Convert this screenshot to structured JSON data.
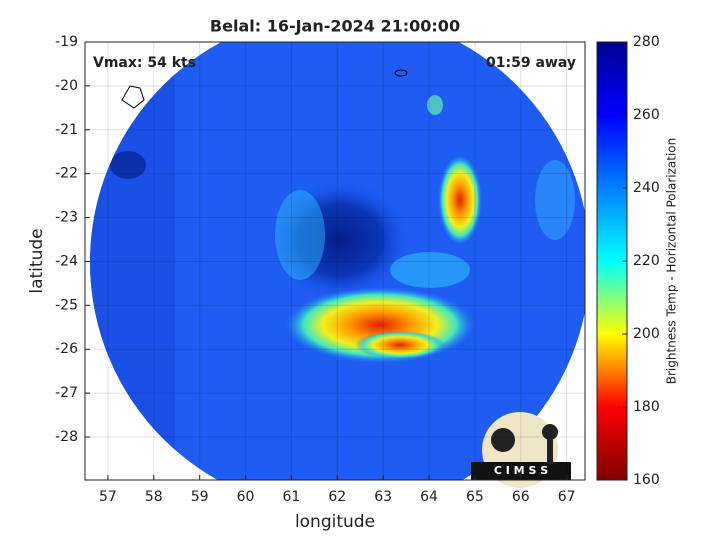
{
  "chart_data": {
    "type": "image",
    "title": "Belal: 16-Jan-2024 21:00:00",
    "xlabel": "longitude",
    "ylabel": "latitude",
    "xlim": [
      56.5,
      67.4
    ],
    "ylim": [
      -28.98,
      -19
    ],
    "xticks": [
      57,
      58,
      59,
      60,
      61,
      62,
      63,
      64,
      65,
      66,
      67
    ],
    "yticks": [
      -19,
      -20,
      -21,
      -22,
      -23,
      -24,
      -25,
      -26,
      -27,
      -28
    ],
    "grid": true,
    "annotations": [
      "Vmax: 54 kts",
      "01:59 away"
    ],
    "logo": "C I M S S",
    "colorbar": {
      "label": "Brightness Temp - Horizontal Polarization",
      "lim": [
        160,
        280
      ],
      "ticks": [
        160,
        180,
        200,
        220,
        240,
        260,
        280
      ],
      "colors": [
        "#7f0000",
        "#ff0000",
        "#ffff00",
        "#00ffff",
        "#0080ff",
        "#0000ff",
        "#00008f"
      ]
    }
  }
}
